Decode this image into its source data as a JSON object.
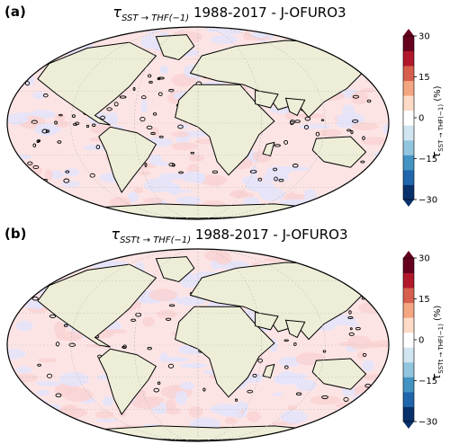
{
  "chart_data": [
    {
      "type": "heatmap",
      "panel_label": "(a)",
      "title_symbol": "τ",
      "title_sub": "SST → THF(−1)",
      "title_rest": "1988-2017 - J-OFURO3",
      "colorbar": {
        "ticks": [
          "30",
          "15",
          "0",
          "−15",
          "−30"
        ],
        "tick_values": [
          30,
          15,
          0,
          -15,
          -30
        ],
        "range": [
          -30,
          30
        ],
        "label_symbol": "τ",
        "label_sub": "SST → THF(−1)",
        "label_unit": "(%)",
        "colors": [
          "#08306b",
          "#2166ac",
          "#4393c3",
          "#92c5de",
          "#d1e5f0",
          "#ffffff",
          "#fddbc7",
          "#f4a582",
          "#d6604d",
          "#b2182b",
          "#67001f"
        ]
      },
      "projection": "mollweide"
    },
    {
      "type": "heatmap",
      "panel_label": "(b)",
      "title_symbol": "τ",
      "title_sub": "SSTt → THF(−1)",
      "title_rest": "1988-2017 - J-OFURO3",
      "colorbar": {
        "ticks": [
          "30",
          "15",
          "0",
          "−15",
          "−30"
        ],
        "tick_values": [
          30,
          15,
          0,
          -15,
          -30
        ],
        "range": [
          -30,
          30
        ],
        "label_symbol": "τ",
        "label_sub": "SSTt → THF(−1)",
        "label_unit": "(%)",
        "colors": [
          "#08306b",
          "#2166ac",
          "#4393c3",
          "#92c5de",
          "#d1e5f0",
          "#ffffff",
          "#fddbc7",
          "#f4a582",
          "#d6604d",
          "#b2182b",
          "#67001f"
        ]
      },
      "projection": "mollweide"
    }
  ],
  "colors": {
    "land": "#eeeed8",
    "ocean_pos": "#fde4e4",
    "ocean_neg": "#e4e4fb",
    "coast": "#000000"
  }
}
